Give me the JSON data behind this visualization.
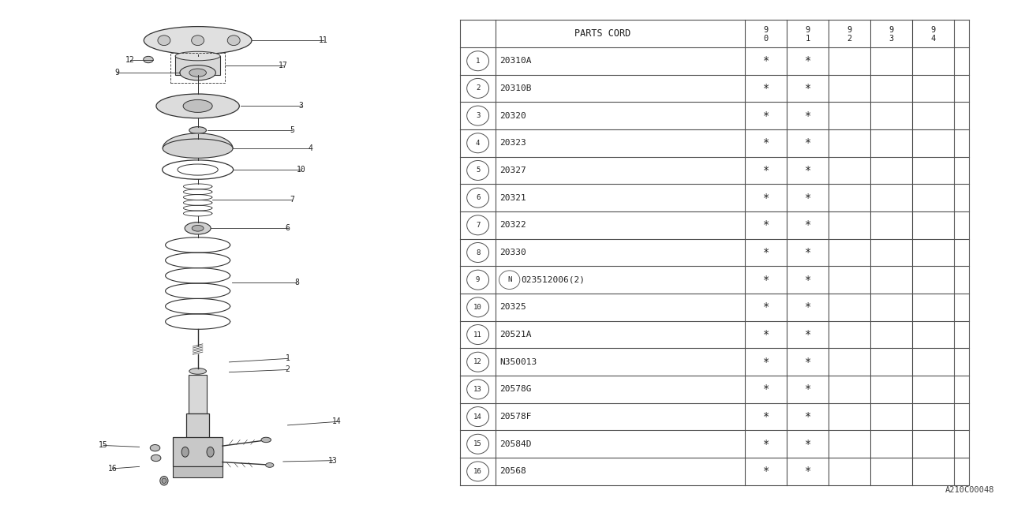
{
  "bg_color": "#ffffff",
  "table_header": "PARTS CORD",
  "parts": [
    {
      "num": "1",
      "code": "20310A",
      "marks": [
        true,
        true,
        false,
        false,
        false
      ]
    },
    {
      "num": "2",
      "code": "20310B",
      "marks": [
        true,
        true,
        false,
        false,
        false
      ]
    },
    {
      "num": "3",
      "code": "20320",
      "marks": [
        true,
        true,
        false,
        false,
        false
      ]
    },
    {
      "num": "4",
      "code": "20323",
      "marks": [
        true,
        true,
        false,
        false,
        false
      ]
    },
    {
      "num": "5",
      "code": "20327",
      "marks": [
        true,
        true,
        false,
        false,
        false
      ]
    },
    {
      "num": "6",
      "code": "20321",
      "marks": [
        true,
        true,
        false,
        false,
        false
      ]
    },
    {
      "num": "7",
      "code": "20322",
      "marks": [
        true,
        true,
        false,
        false,
        false
      ]
    },
    {
      "num": "8",
      "code": "20330",
      "marks": [
        true,
        true,
        false,
        false,
        false
      ]
    },
    {
      "num": "9",
      "code": "N023512006(2)",
      "marks": [
        true,
        true,
        false,
        false,
        false
      ],
      "circled_N": true
    },
    {
      "num": "10",
      "code": "20325",
      "marks": [
        true,
        true,
        false,
        false,
        false
      ]
    },
    {
      "num": "11",
      "code": "20521A",
      "marks": [
        true,
        true,
        false,
        false,
        false
      ]
    },
    {
      "num": "12",
      "code": "N350013",
      "marks": [
        true,
        true,
        false,
        false,
        false
      ]
    },
    {
      "num": "13",
      "code": "20578G",
      "marks": [
        true,
        true,
        false,
        false,
        false
      ]
    },
    {
      "num": "14",
      "code": "20578F",
      "marks": [
        true,
        true,
        false,
        false,
        false
      ]
    },
    {
      "num": "15",
      "code": "20584D",
      "marks": [
        true,
        true,
        false,
        false,
        false
      ]
    },
    {
      "num": "16",
      "code": "20568",
      "marks": [
        true,
        true,
        false,
        false,
        false
      ]
    }
  ],
  "watermark": "A210C00048",
  "line_color": "#303030",
  "table_line_color": "#505050"
}
